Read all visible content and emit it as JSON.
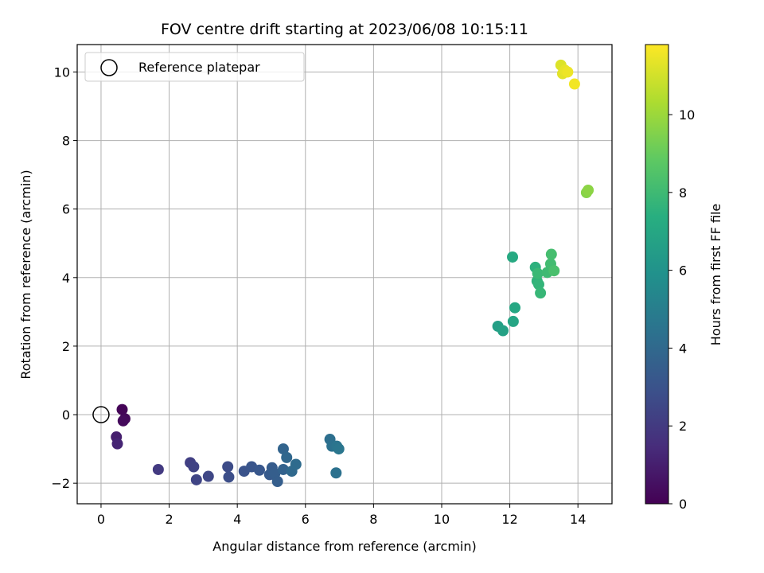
{
  "chart_data": {
    "type": "scatter",
    "title": "FOV centre drift starting at 2023/06/08 10:15:11",
    "xlabel": "Angular distance from reference (arcmin)",
    "ylabel": "Rotation from reference (arcmin)",
    "xlim": [
      -0.7,
      15.0
    ],
    "ylim": [
      -2.6,
      10.8
    ],
    "xticks": [
      "0",
      "2",
      "4",
      "6",
      "8",
      "10",
      "12",
      "14"
    ],
    "yticks": [
      "−2",
      "0",
      "2",
      "4",
      "6",
      "8",
      "10"
    ],
    "grid": true,
    "legend": {
      "placement": "top-left",
      "entries": [
        "Reference platepar"
      ]
    },
    "reference_point": {
      "x": 0,
      "y": 0,
      "label": "Reference platepar"
    },
    "colorbar": {
      "label": "Hours from first FF file",
      "colormap": "viridis",
      "range": [
        0,
        11.8
      ],
      "ticks": [
        "0",
        "2",
        "4",
        "6",
        "8",
        "10"
      ]
    },
    "points": [
      {
        "x": 0.62,
        "y": 0.15,
        "t": 0.1
      },
      {
        "x": 0.7,
        "y": -0.12,
        "t": 0.2
      },
      {
        "x": 0.65,
        "y": -0.18,
        "t": 0.3
      },
      {
        "x": 0.45,
        "y": -0.65,
        "t": 1.0
      },
      {
        "x": 0.48,
        "y": -0.85,
        "t": 1.2
      },
      {
        "x": 1.68,
        "y": -1.6,
        "t": 2.0
      },
      {
        "x": 2.62,
        "y": -1.4,
        "t": 2.2
      },
      {
        "x": 2.72,
        "y": -1.52,
        "t": 2.3
      },
      {
        "x": 2.8,
        "y": -1.9,
        "t": 2.4
      },
      {
        "x": 3.15,
        "y": -1.8,
        "t": 2.5
      },
      {
        "x": 3.72,
        "y": -1.52,
        "t": 2.7
      },
      {
        "x": 3.75,
        "y": -1.82,
        "t": 2.8
      },
      {
        "x": 4.2,
        "y": -1.65,
        "t": 3.0
      },
      {
        "x": 4.42,
        "y": -1.52,
        "t": 3.1
      },
      {
        "x": 4.65,
        "y": -1.62,
        "t": 3.2
      },
      {
        "x": 4.95,
        "y": -1.75,
        "t": 3.3
      },
      {
        "x": 5.02,
        "y": -1.55,
        "t": 3.4
      },
      {
        "x": 5.1,
        "y": -1.72,
        "t": 3.5
      },
      {
        "x": 5.18,
        "y": -1.95,
        "t": 3.5
      },
      {
        "x": 5.35,
        "y": -1.6,
        "t": 3.7
      },
      {
        "x": 5.35,
        "y": -1.0,
        "t": 3.8
      },
      {
        "x": 5.45,
        "y": -1.25,
        "t": 3.9
      },
      {
        "x": 5.6,
        "y": -1.65,
        "t": 4.0
      },
      {
        "x": 5.72,
        "y": -1.45,
        "t": 4.1
      },
      {
        "x": 6.72,
        "y": -0.72,
        "t": 4.3
      },
      {
        "x": 6.78,
        "y": -0.92,
        "t": 4.4
      },
      {
        "x": 6.92,
        "y": -0.92,
        "t": 4.5
      },
      {
        "x": 6.98,
        "y": -1.0,
        "t": 4.6
      },
      {
        "x": 6.9,
        "y": -1.7,
        "t": 4.4
      },
      {
        "x": 11.65,
        "y": 2.58,
        "t": 6.6
      },
      {
        "x": 11.8,
        "y": 2.45,
        "t": 6.7
      },
      {
        "x": 12.1,
        "y": 2.72,
        "t": 6.9
      },
      {
        "x": 12.15,
        "y": 3.12,
        "t": 7.0
      },
      {
        "x": 12.08,
        "y": 4.6,
        "t": 7.1
      },
      {
        "x": 12.75,
        "y": 4.3,
        "t": 7.5
      },
      {
        "x": 12.8,
        "y": 3.9,
        "t": 7.6
      },
      {
        "x": 12.85,
        "y": 3.8,
        "t": 7.7
      },
      {
        "x": 12.9,
        "y": 3.55,
        "t": 7.8
      },
      {
        "x": 12.82,
        "y": 4.12,
        "t": 7.9
      },
      {
        "x": 13.1,
        "y": 4.15,
        "t": 8.0
      },
      {
        "x": 13.2,
        "y": 4.4,
        "t": 8.1
      },
      {
        "x": 13.22,
        "y": 4.68,
        "t": 8.2
      },
      {
        "x": 13.3,
        "y": 4.2,
        "t": 8.3
      },
      {
        "x": 14.25,
        "y": 6.48,
        "t": 9.6
      },
      {
        "x": 14.3,
        "y": 6.55,
        "t": 9.7
      },
      {
        "x": 13.5,
        "y": 10.2,
        "t": 11.2
      },
      {
        "x": 13.55,
        "y": 9.95,
        "t": 11.3
      },
      {
        "x": 13.62,
        "y": 10.05,
        "t": 11.4
      },
      {
        "x": 13.7,
        "y": 10.0,
        "t": 11.5
      },
      {
        "x": 13.9,
        "y": 9.65,
        "t": 11.6
      }
    ]
  }
}
